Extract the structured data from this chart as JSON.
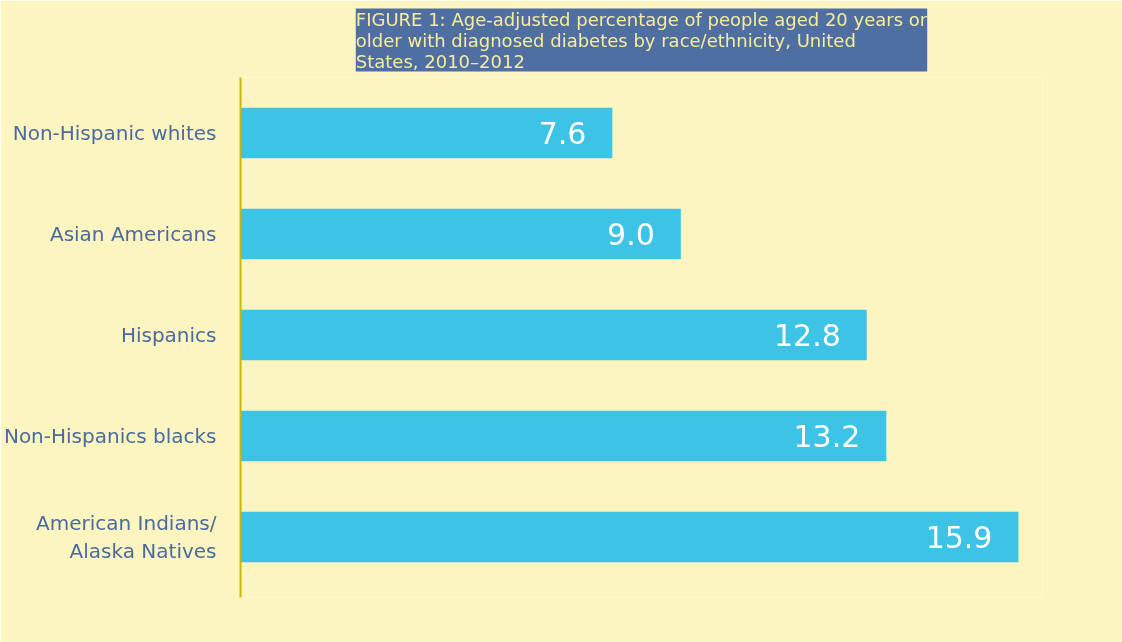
{
  "chart_data": {
    "type": "bar",
    "orientation": "horizontal",
    "title": "FIGURE 1: Age-adjusted percentage of people aged 20 years or older with diagnosed diabetes by race/ethnicity, United States, 2010–2012",
    "categories": [
      "Non-Hispanic whites",
      "Asian Americans",
      "Hispanics",
      "Non-Hispanics blacks",
      "American Indians/ Alaska Natives"
    ],
    "values": [
      7.6,
      9.0,
      12.8,
      13.2,
      15.9
    ],
    "value_labels": [
      "7.6",
      "9.0",
      "12.8",
      "13.2",
      "15.9"
    ],
    "color": "#3cc3e6",
    "grid": false
  }
}
